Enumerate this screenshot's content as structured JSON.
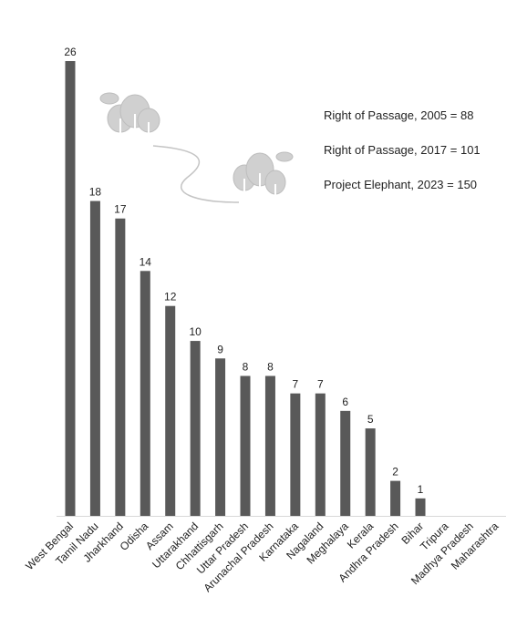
{
  "chart_data": {
    "type": "bar",
    "categories": [
      "West Bengal",
      "Tamil Nadu",
      "Jharkhand",
      "Odisha",
      "Assam",
      "Uttarakhand",
      "Chhattisgarh",
      "Uttar Pradesh",
      "Arunachal Pradesh",
      "Karnataka",
      "Nagaland",
      "Meghalaya",
      "Kerala",
      "Andhra Pradesh",
      "Bihar",
      "Tripura",
      "Madhya Pradesh",
      "Maharashtra"
    ],
    "values": [
      26,
      18,
      17,
      14,
      12,
      10,
      9,
      8,
      8,
      7,
      7,
      6,
      5,
      2,
      1,
      null,
      null,
      null
    ],
    "color": "#595959",
    "ylim": [
      0,
      26
    ],
    "annotations": [
      "Right of Passage, 2005 = 88",
      "Right of Passage, 2017 = 101",
      "Project Elephant, 2023 = 150"
    ]
  }
}
